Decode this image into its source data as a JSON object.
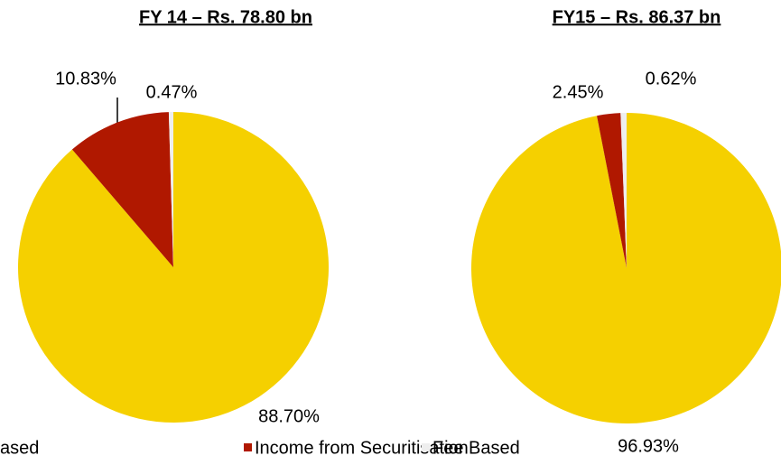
{
  "chart_data": [
    {
      "type": "pie",
      "title": "FY 14 – Rs. 78.80 bn",
      "categories": [
        "ased",
        "Income from Securitisation",
        "Fee Based"
      ],
      "values": [
        88.7,
        10.83,
        0.47
      ],
      "value_labels": [
        "88.70%",
        "10.83%",
        "0.47%"
      ],
      "colors": [
        "#f5d000",
        "#b01800",
        "#eeeeee"
      ]
    },
    {
      "type": "pie",
      "title": "FY15 – Rs. 86.37 bn",
      "categories": [
        "ased",
        "Income from Securitisation",
        "Fee Based"
      ],
      "values": [
        96.93,
        2.45,
        0.62
      ],
      "value_labels": [
        "96.93%",
        "2.45%",
        "0.62%"
      ],
      "colors": [
        "#f5d000",
        "#b01800",
        "#eeeeee"
      ]
    }
  ]
}
